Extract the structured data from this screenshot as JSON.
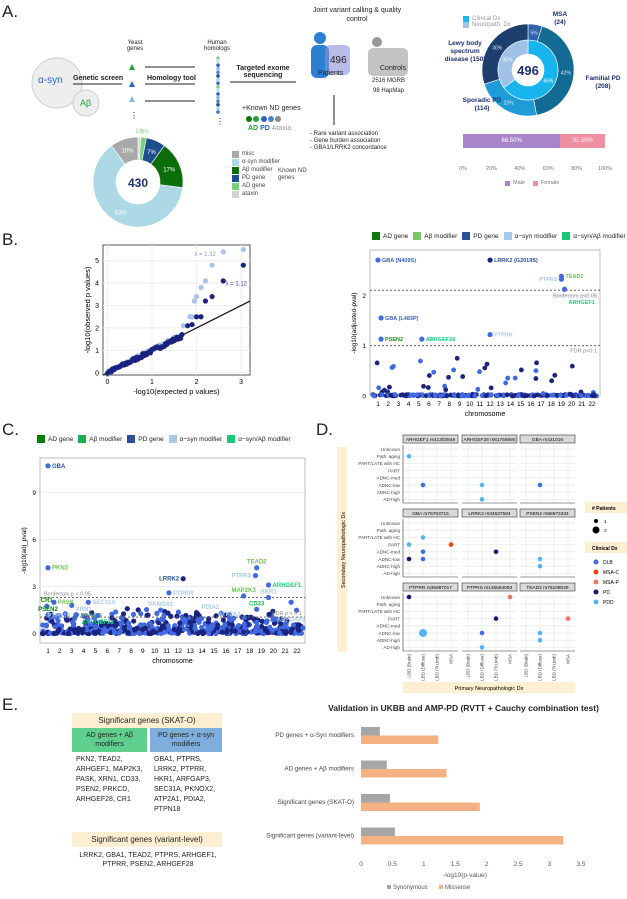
{
  "panels": {
    "a": "A.",
    "b": "B.",
    "c": "C.",
    "d": "D.",
    "e": "E."
  },
  "panel_a": {
    "yeast_alpha": "α-syn",
    "yeast_abeta": "Aβ",
    "genetic_screen": "Genetic screen",
    "yeast_genes": "Yeast genes",
    "homology_tool": "Homology tool",
    "human_homologs": "Human homologs",
    "targeted_sequencing": "Targeted exome sequencing",
    "known_nd": "+Known ND genes",
    "known_nd_ad": "AD",
    "known_nd_pd": "PD",
    "known_nd_ataxia": "Ataxia",
    "joint_calling": "Joint variant calling & quality control",
    "patients_n": "496",
    "patients_label": "Patients",
    "controls_label": "Controls",
    "controls_mgrb": "2516 MGRB",
    "controls_hapmap": "98 HapMap",
    "analyses": [
      "- Rare variant association",
      "- Gene burden association",
      "- GBA1/LRRK2 concordance"
    ],
    "known_nd_legend": "Known ND genes"
  },
  "chart_data": [
    {
      "id": "homolog-donut",
      "type": "pie",
      "center_label": "430",
      "slices": [
        {
          "label": "ataxin",
          "value": 1,
          "color": "#d3d3d3"
        },
        {
          "label": "AD gene",
          "value": 2,
          "color": "#7ccf7c"
        },
        {
          "label": "PD gene",
          "value": 7,
          "color": "#1f4e8c"
        },
        {
          "label": "Aβ modifier",
          "value": 17,
          "color": "#0b6e0b"
        },
        {
          "label": "α-syn modifier",
          "value": 63,
          "color": "#add8e6"
        },
        {
          "label": "misc",
          "value": 10,
          "color": "#a9a9a9"
        }
      ]
    },
    {
      "id": "cohort-donut",
      "type": "pie",
      "center_label": "496",
      "legend": [
        {
          "label": "Clinical Dx",
          "color": "#17b4ee"
        },
        {
          "label": "Neuropath. Dx",
          "color": "#9fc2e6"
        }
      ],
      "outer": [
        {
          "label": "MSA",
          "count": "(24)",
          "value": 5,
          "color": "#2f63ad"
        },
        {
          "label": "Familial PD",
          "count": "(208)",
          "value": 42,
          "color": "#136a92"
        },
        {
          "label": "Sporadic PD",
          "count": "(114)",
          "value": 23,
          "color": "#1f9bd8"
        },
        {
          "label": "Lewy body spectrum disease",
          "count": "(150)",
          "value": 30,
          "color": "#1d3f6e"
        }
      ],
      "inner": [
        {
          "label": "Clinical Dx",
          "value": 65,
          "color": "#17b4ee"
        },
        {
          "label": "Neuropath. Dx",
          "value": 35,
          "color": "#9fc2e6"
        }
      ]
    },
    {
      "id": "sex-bar",
      "type": "bar",
      "series": [
        {
          "name": "Male",
          "value": 68.5,
          "text": "68.50%",
          "color": "#a984c9"
        },
        {
          "name": "Female",
          "value": 31.5,
          "text": "31.50%",
          "color": "#ef8fa2"
        }
      ],
      "ticks": [
        "0%",
        "20%",
        "40%",
        "60%",
        "80%",
        "100%"
      ]
    },
    {
      "id": "qq-plot",
      "type": "scatter",
      "xlabel": "-log10(expected p values)",
      "ylabel": "-log10(observed p values)",
      "xlim": [
        -0.1,
        3.2
      ],
      "ylim": [
        -0.1,
        5.7
      ],
      "xticks": [
        0,
        1,
        2,
        3
      ],
      "yticks": [
        0,
        1,
        2,
        3,
        4,
        5
      ],
      "series": [
        {
          "name": "λ = 1.32",
          "color": "#a9c4e8",
          "tail": [
            [
              1.7,
              2.1
            ],
            [
              1.85,
              2.5
            ],
            [
              1.9,
              2.5
            ],
            [
              1.95,
              3.2
            ],
            [
              2.0,
              3.4
            ],
            [
              2.1,
              3.8
            ],
            [
              2.2,
              4.1
            ],
            [
              2.35,
              4.8
            ],
            [
              2.6,
              5.4
            ],
            [
              3.05,
              5.5
            ]
          ]
        },
        {
          "name": "λ = 1.12",
          "color": "#1a237e",
          "tail": [
            [
              1.8,
              2.1
            ],
            [
              1.9,
              2.15
            ],
            [
              2.0,
              2.5
            ],
            [
              2.1,
              2.5
            ],
            [
              2.2,
              3.2
            ],
            [
              2.35,
              3.4
            ],
            [
              2.6,
              4.1
            ],
            [
              3.05,
              4.8
            ]
          ]
        }
      ]
    },
    {
      "id": "manhattan-variant",
      "type": "scatter",
      "ylabel": "-log10(adjusted-pval)",
      "xlabel": "chromosome",
      "ylim": [
        0,
        2.9
      ],
      "yticks": [
        0,
        1,
        2
      ],
      "chromosomes": [
        "1",
        "2",
        "3",
        "4",
        "5",
        "6",
        "7",
        "8",
        "9",
        "10",
        "11",
        "12",
        "13",
        "14",
        "15",
        "16",
        "17",
        "18",
        "19",
        "20",
        "21",
        "22"
      ],
      "thresholds": [
        {
          "label": "Bonferroni p<0.05",
          "y": 2.1
        },
        {
          "label": "FDR p<0.1",
          "y": 1.0
        }
      ],
      "legend": [
        {
          "label": "AD gene",
          "color": "#0b7a0b"
        },
        {
          "label": "Aβ modifier",
          "color": "#7cc46c"
        },
        {
          "label": "PD gene",
          "color": "#2d4f96"
        },
        {
          "label": "α−syn modifier",
          "color": "#a9c9ec"
        },
        {
          "label": "α−syn/Aβ modifier",
          "color": "#19c97a"
        }
      ],
      "hits": [
        {
          "label": "GBA (N409S)",
          "chr": 1,
          "y": 2.7,
          "color": "#3b5fc0"
        },
        {
          "label": "LRRK2 (G2019S)",
          "chr": 12,
          "y": 2.7,
          "color": "#2d4f96"
        },
        {
          "label": "TEAD2",
          "chr": 19,
          "y": 2.38,
          "color": "#6fbf5a"
        },
        {
          "label": "PTPRS",
          "chr": 19,
          "y": 2.32,
          "color": "#a9c9ec",
          "side": "left"
        },
        {
          "label": "ARHGEF1",
          "chr": 19.3,
          "y": 2.12,
          "color": "#19c97a"
        },
        {
          "label": "GBA (L483P)",
          "chr": 1.3,
          "y": 1.55,
          "color": "#3b5fc0"
        },
        {
          "label": "PSEN2",
          "chr": 1.3,
          "y": 1.13,
          "color": "#1d8f1d"
        },
        {
          "label": "ARHGEF28",
          "chr": 5.3,
          "y": 1.13,
          "color": "#19c97a"
        },
        {
          "label": "PTPRR",
          "chr": 12,
          "y": 1.22,
          "color": "#a9c9ec"
        }
      ]
    },
    {
      "id": "manhattan-gene",
      "type": "scatter",
      "ylabel": "-log10(adj_pval)",
      "xlabel": "chromosome",
      "ylim": [
        -0.6,
        11.2
      ],
      "yticks": [
        0,
        3,
        6,
        9
      ],
      "chromosomes": [
        "1",
        "2",
        "3",
        "4",
        "5",
        "6",
        "7",
        "8",
        "9",
        "10",
        "11",
        "12",
        "13",
        "14",
        "15",
        "16",
        "17",
        "18",
        "19",
        "20",
        "21",
        "22"
      ],
      "thresholds": [
        {
          "label": "Bonferroni p < 0.05",
          "y": 2.3
        },
        {
          "label": "FDR p < 0.1",
          "y": 1.05
        }
      ],
      "legend": [
        {
          "label": "AD gene",
          "color": "#0b7a0b"
        },
        {
          "label": "Aβ modifier",
          "color": "#19b04a"
        },
        {
          "label": "PD gene",
          "color": "#2d4f96"
        },
        {
          "label": "α−syn modifier",
          "color": "#a9c9ec"
        },
        {
          "label": "α−syn/Aβ modifier",
          "color": "#19c97a"
        }
      ],
      "hits": [
        {
          "label": "GBA",
          "chr": 1,
          "y": 10.7,
          "color": "#2d4f96"
        },
        {
          "label": "PKN2",
          "chr": 1,
          "y": 4.2,
          "color": "#6fbf5a"
        },
        {
          "label": "LRRK2",
          "chr": 12.4,
          "y": 3.5,
          "color": "#2d4f96",
          "side": "left"
        },
        {
          "label": "TEAD2",
          "chr": 18.6,
          "y": 4.2,
          "color": "#6fbf5a",
          "side": "top"
        },
        {
          "label": "PTPRS",
          "chr": 18.5,
          "y": 3.7,
          "color": "#a9c9ec",
          "side": "left"
        },
        {
          "label": "ARHGEF1",
          "chr": 19.6,
          "y": 3.1,
          "color": "#19c97a"
        },
        {
          "label": "PTPRR",
          "chr": 11.2,
          "y": 2.6,
          "color": "#a9c9ec"
        },
        {
          "label": "MAP2K3",
          "chr": 17.5,
          "y": 2.4,
          "color": "#6fbf5a",
          "side": "top"
        },
        {
          "label": "HKR1",
          "chr": 19.6,
          "y": 2.3,
          "color": "#a9c9ec",
          "side": "top"
        },
        {
          "label": "ARFGAP3",
          "chr": 21.5,
          "y": 2.0,
          "color": "#a9c9ec",
          "side": "below"
        },
        {
          "label": "CD33",
          "chr": 18.6,
          "y": 1.55,
          "color": "#19b04a",
          "side": "top"
        },
        {
          "label": "PDIA2",
          "chr": 15.6,
          "y": 1.3,
          "color": "#a9c9ec",
          "side": "topleft"
        },
        {
          "label": "ATP2A1",
          "chr": 16.3,
          "y": 1.2,
          "color": "#a9c9ec",
          "side": "top"
        },
        {
          "label": "PKNOX2",
          "chr": 10.5,
          "y": 1.5,
          "color": "#a9c9ec",
          "side": "top"
        },
        {
          "label": "SEC31A",
          "chr": 4.4,
          "y": 2.0,
          "color": "#a9c9ec"
        },
        {
          "label": "XRN1",
          "chr": 3.0,
          "y": 1.8,
          "color": "#a9c9ec"
        },
        {
          "label": "PASK",
          "chr": 1.5,
          "y": 2.0,
          "color": "#6fbf5a"
        },
        {
          "label": "CR1",
          "chr": 0.9,
          "y": 1.75,
          "color": "#0b7a0b",
          "side": "top"
        },
        {
          "label": "PSEN2",
          "chr": 1.0,
          "y": 1.2,
          "color": "#0b7a0b",
          "side": "top"
        },
        {
          "label": "PTPN18",
          "chr": 1.9,
          "y": 1.15,
          "color": "#a9c9ec",
          "side": "top"
        },
        {
          "label": "PRKCD",
          "chr": 3.4,
          "y": 1.2,
          "color": "#6fbf5a"
        },
        {
          "label": "ARHGEF28",
          "chr": 5.2,
          "y": 1.15,
          "color": "#19c97a",
          "side": "top"
        }
      ]
    },
    {
      "id": "neuropath-facets",
      "type": "scatter",
      "ylabel": "Secondary Neuropathologic Dx",
      "xlabel": "Primary Neuropathologic Dx",
      "y_categories": [
        "Unknown",
        "Path. aging",
        "PART/LATE with HC",
        "PART",
        "ADNC-med",
        "ADNC-low",
        "ADNC-high",
        "AD-high"
      ],
      "x_categories": [
        "LBD (Brain)",
        "LBD (Diffuse)",
        "LBD (TrLimb)",
        "MSA"
      ],
      "size_legend_title": "# Patients",
      "size_legend": [
        "1",
        "2"
      ],
      "color_legend_title": "Clinical Dx",
      "clinical": [
        {
          "label": "DLB",
          "color": "#3f6ee0"
        },
        {
          "label": "MSA-C",
          "color": "#f0420e"
        },
        {
          "label": "MSA-P",
          "color": "#f5736a"
        },
        {
          "label": "PD",
          "color": "#161a6e"
        },
        {
          "label": "PDD",
          "color": "#55b4f7"
        }
      ],
      "facets": [
        {
          "title": "ARHGEF1 rs41303849",
          "points": [
            [
              0,
              "Path. aging",
              "PDD",
              1
            ],
            [
              1,
              "ADNC-low",
              "DLB",
              1
            ]
          ]
        },
        {
          "title": "ARHGEF28 rs61756690",
          "points": [
            [
              1,
              "ADNC-low",
              "PDD",
              1
            ],
            [
              1,
              "AD-high",
              "PDD",
              1
            ]
          ]
        },
        {
          "title": "GBA rs421016",
          "points": [
            [
              1,
              "ADNC-low",
              "DLB",
              1
            ]
          ]
        },
        {
          "title": "GBA rs76763715",
          "points": [
            [
              1,
              "PART/LATE with HC",
              "PDD",
              1
            ],
            [
              0,
              "PART",
              "PDD",
              1
            ],
            [
              3,
              "PART",
              "MSA-C",
              1
            ],
            [
              1,
              "ADNC-med",
              "DLB",
              1
            ],
            [
              0,
              "ADNC-low",
              "PD",
              1
            ],
            [
              1,
              "ADNC-low",
              "DLB",
              1
            ]
          ]
        },
        {
          "title": "LRRK2 rs34637584",
          "points": [
            [
              2,
              "ADNC-med",
              "PD",
              1
            ]
          ]
        },
        {
          "title": "PSEN2 rs58973334",
          "points": [
            [
              1,
              "ADNC-low",
              "PDD",
              1
            ],
            [
              1,
              "ADNC-high",
              "PDD",
              1
            ]
          ]
        },
        {
          "title": "PTPRR rs35987017",
          "points": [
            [
              0,
              "Unknown",
              "PD",
              1
            ],
            [
              1,
              "ADNC-low",
              "PDD",
              2
            ]
          ]
        },
        {
          "title": "PTPRS rs145584093",
          "points": [
            [
              3,
              "Unknown",
              "MSA-P",
              1
            ],
            [
              2,
              "PART",
              "PD",
              1
            ],
            [
              1,
              "ADNC-low",
              "DLB",
              1
            ],
            [
              1,
              "AD-high",
              "PDD",
              1
            ]
          ]
        },
        {
          "title": "TEAD2 rs75108029",
          "points": [
            [
              3,
              "PART",
              "MSA-P",
              1
            ],
            [
              1,
              "ADNC-low",
              "PDD",
              1
            ],
            [
              1,
              "ADNC-high",
              "PDD",
              1
            ]
          ]
        }
      ]
    },
    {
      "id": "validation-bars",
      "type": "bar",
      "title": "Validation in UKBB and AMP-PD (RVTT + Cauchy combination test)",
      "xlabel": "-log10(p-value)",
      "xlim": [
        0,
        3.5
      ],
      "xticks": [
        "0",
        "0.5",
        "1",
        "1.5",
        "2",
        "2.5",
        "3",
        "3.5"
      ],
      "categories": [
        "PD genes + α-Syn modifiers",
        "AD genes + Aβ modifiers",
        "Significant genes (SKAT-O)",
        "Significant genes (variant-level)"
      ],
      "series": [
        {
          "name": "Synonymous",
          "color": "#a6a6a6",
          "values": [
            0.3,
            0.41,
            0.46,
            0.54
          ]
        },
        {
          "name": "Missense",
          "color": "#f4b183",
          "values": [
            1.23,
            1.36,
            1.89,
            3.22
          ]
        }
      ]
    }
  ],
  "panel_e": {
    "skato_header": "Significant genes (SKAT-O)",
    "ad_header": "AD genes + Aβ modifiers",
    "pd_header": "PD genes + α-syn modifiers",
    "ad_genes": "PKN2, TEAD2, ARHGEF1, MAP2K3, PASK, XRN1, CD33, PSEN2, PRKCD, ARHGEF28, CR1",
    "pd_genes": "GBA1, PTPRS, LRRK2, PTPRR, HKR1, ARFGAP3, SEC31A, PKNOX2, ATP2A1, PDIA2, PTPN18",
    "variant_header": "Significant genes (variant-level)",
    "variant_genes": "LRRK2, GBA1, TEAD2, PTPRS, ARHGEF1, PTPRR, PSEN2, ARHGEF28"
  }
}
